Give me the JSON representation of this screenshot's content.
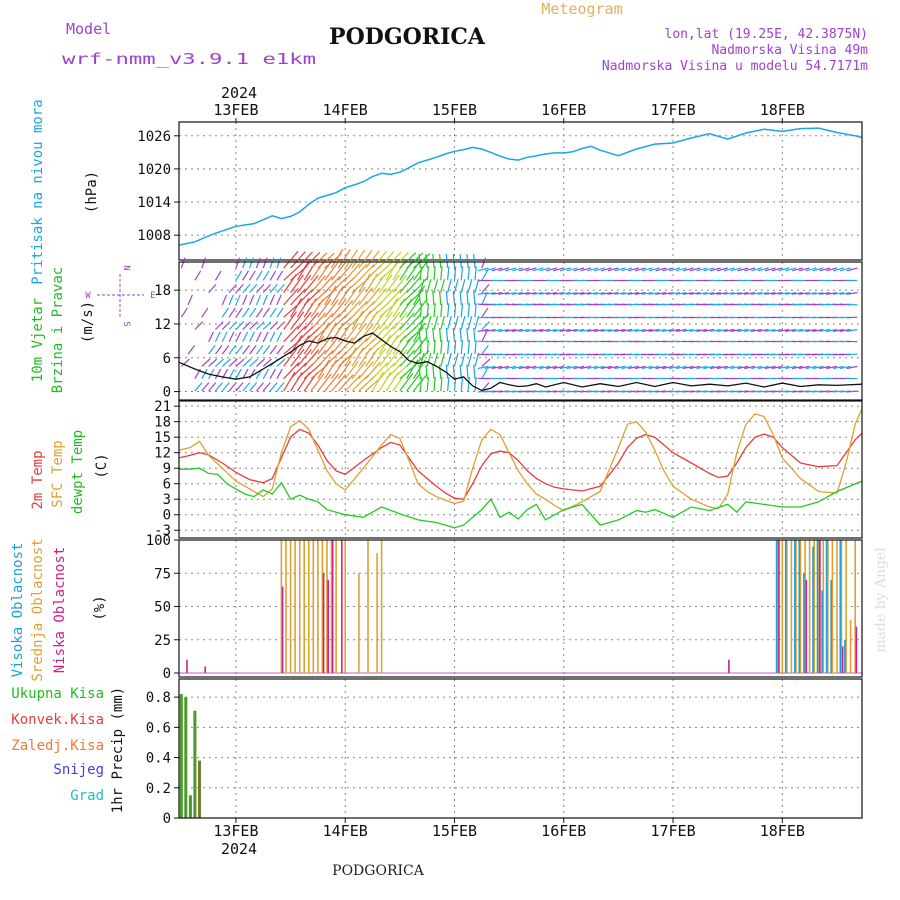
{
  "header": {
    "model_label": "Model",
    "model_name": "wrf-nmm_v3.9.1 e1km",
    "title": "PODGORICA",
    "subtitle": "Meteogram",
    "coords": "lon,lat (19.25E, 42.3875N)",
    "altitude": "Nadmorska Visina 49m",
    "model_altitude": "Nadmorska Visina u modelu 54.7171m",
    "footer_title": "PODGORICA",
    "credit": "made by Angel"
  },
  "colors": {
    "pressure": "#1aa6e6",
    "temp2m": "#e83c3c",
    "sfc": "#e0a030",
    "dewpt": "#22cc22",
    "high_cloud": "#1a9fe0",
    "mid_cloud": "#e0a030",
    "low_cloud": "#d0208a",
    "total_precip": "#22bb22",
    "conv_precip": "#e83c3c",
    "frozen": "#f07a30",
    "snow": "#4040e0",
    "hail": "#20c0c0",
    "title_purple": "#a040d0",
    "grid": "#888888"
  },
  "time_axis": {
    "year_label": "2024",
    "days": [
      "13FEB",
      "14FEB",
      "15FEB",
      "16FEB",
      "17FEB",
      "18FEB"
    ],
    "start_hour": -12.5,
    "end_hour": 137.5
  },
  "chart_data": [
    {
      "type": "line",
      "panel": "pressure",
      "ylabels": [
        "Pritisak na nivou mora",
        "(hPa)"
      ],
      "yticks": [
        1008,
        1014,
        1020,
        1026
      ],
      "ylim": [
        1003.5,
        1028.5
      ],
      "grid": true,
      "series": [
        {
          "x": [
            -12.5,
            -9,
            -5,
            0,
            4,
            8,
            10,
            12,
            14,
            16,
            18,
            20,
            22,
            24,
            26,
            28,
            30,
            32,
            34,
            36,
            38,
            40,
            42,
            44,
            46,
            48,
            50,
            52,
            54,
            56,
            58,
            60,
            62,
            64,
            66,
            68,
            70,
            72,
            74,
            76,
            78,
            80,
            84,
            88,
            92,
            96,
            100,
            104,
            108,
            112,
            116,
            120,
            124,
            128,
            132,
            136,
            137.5
          ],
          "values": [
            1006.2,
            1006.8,
            1008.2,
            1009.6,
            1010.1,
            1011.5,
            1011.0,
            1011.4,
            1012.2,
            1013.6,
            1014.7,
            1015.2,
            1015.7,
            1016.6,
            1017.1,
            1017.7,
            1018.6,
            1019.2,
            1019.0,
            1019.4,
            1020.2,
            1021.1,
            1021.6,
            1022.1,
            1022.7,
            1023.2,
            1023.5,
            1023.9,
            1023.6,
            1023.0,
            1022.3,
            1021.8,
            1021.6,
            1022.1,
            1022.4,
            1022.7,
            1022.9,
            1022.9,
            1023.1,
            1023.7,
            1024.1,
            1023.4,
            1022.4,
            1023.6,
            1024.5,
            1024.7,
            1025.6,
            1026.4,
            1025.4,
            1026.5,
            1027.2,
            1026.8,
            1027.3,
            1027.4,
            1026.6,
            1026.0,
            1025.7
          ]
        }
      ]
    },
    {
      "type": "line",
      "panel": "wind",
      "ylabels": [
        "10m Vjetar",
        "Brzina i Pravac",
        "(m/s)"
      ],
      "compass": [
        "N",
        "W",
        "E",
        "S"
      ],
      "yticks": [
        0,
        6,
        12,
        18
      ],
      "ylim": [
        -1.5,
        23
      ],
      "grid": true,
      "series": [
        {
          "name": "speed",
          "x": [
            -12.5,
            -9,
            -6,
            -3,
            0,
            3,
            6,
            9,
            12,
            14,
            16,
            18,
            20,
            22,
            24,
            26,
            28,
            30,
            32,
            34,
            36,
            38,
            40,
            42,
            44,
            46,
            48,
            50,
            52,
            54,
            56,
            58,
            60,
            62,
            64,
            66,
            68,
            72,
            76,
            80,
            84,
            88,
            92,
            96,
            100,
            104,
            108,
            112,
            116,
            120,
            124,
            128,
            132,
            137.5
          ],
          "values": [
            5.2,
            4.0,
            3.1,
            2.6,
            2.2,
            2.6,
            4.0,
            5.5,
            7.0,
            8.2,
            9.0,
            8.6,
            9.4,
            9.6,
            9.0,
            8.6,
            9.8,
            10.4,
            9.2,
            8.0,
            7.1,
            5.5,
            5.0,
            5.3,
            4.5,
            3.5,
            2.2,
            2.6,
            1.0,
            0.2,
            0.6,
            1.6,
            1.2,
            0.9,
            1.0,
            1.4,
            0.8,
            1.6,
            0.8,
            1.4,
            0.9,
            1.6,
            0.9,
            1.6,
            1.0,
            1.3,
            1.0,
            1.5,
            0.8,
            1.5,
            0.9,
            1.2,
            1.1,
            1.3
          ]
        }
      ]
    },
    {
      "type": "line",
      "panel": "temperature",
      "ylabels": [
        "2m Temp",
        "SFC Temp",
        "dewpt Temp",
        "(C)"
      ],
      "yticks": [
        -3,
        0,
        3,
        6,
        9,
        12,
        15,
        18,
        21
      ],
      "ylim": [
        -4.5,
        22
      ],
      "grid": true,
      "series": [
        {
          "name": "2m Temp",
          "x": [
            -12.5,
            -10,
            -8,
            -6,
            -3,
            0,
            3,
            6,
            8,
            10,
            12,
            14,
            16,
            18,
            20,
            22,
            24,
            28,
            32,
            34,
            36,
            38,
            40,
            42,
            44,
            46,
            48,
            50,
            52,
            54,
            56,
            58,
            60,
            62,
            64,
            66,
            68,
            70,
            72,
            76,
            80,
            84,
            86,
            88,
            90,
            92,
            94,
            96,
            100,
            104,
            106,
            108,
            110,
            112,
            114,
            116,
            118,
            120,
            124,
            128,
            132,
            134,
            136,
            137.5
          ],
          "values": [
            11.0,
            11.5,
            12.0,
            11.6,
            10.0,
            8.2,
            6.8,
            6.2,
            7.0,
            11.0,
            15.0,
            16.5,
            15.8,
            13.5,
            10.5,
            8.5,
            7.8,
            10.5,
            13.0,
            14.0,
            13.5,
            11.0,
            8.5,
            7.0,
            5.5,
            4.2,
            3.2,
            3.0,
            6.0,
            9.5,
            11.8,
            12.3,
            12.0,
            10.5,
            8.5,
            7.0,
            6.0,
            5.3,
            5.0,
            4.6,
            5.5,
            10.0,
            13.0,
            14.8,
            15.5,
            15.0,
            13.5,
            12.0,
            10.0,
            8.0,
            7.2,
            7.5,
            10.0,
            13.0,
            15.0,
            15.6,
            15.0,
            13.0,
            10.0,
            9.3,
            9.5,
            12.0,
            14.5,
            15.8
          ]
        },
        {
          "name": "SFC Temp",
          "x": [
            -12.5,
            -10,
            -8,
            -6,
            -3,
            0,
            3,
            6,
            8,
            10,
            12,
            14,
            16,
            18,
            20,
            22,
            24,
            28,
            32,
            34,
            36,
            38,
            40,
            42,
            44,
            46,
            48,
            50,
            52,
            54,
            56,
            58,
            60,
            62,
            64,
            66,
            68,
            70,
            72,
            76,
            80,
            84,
            86,
            88,
            90,
            92,
            94,
            96,
            100,
            104,
            106,
            108,
            110,
            112,
            114,
            116,
            118,
            120,
            124,
            128,
            132,
            134,
            136,
            137.5
          ],
          "values": [
            12.5,
            13.0,
            14.2,
            11.5,
            9.0,
            6.5,
            5.0,
            3.5,
            5.0,
            12.0,
            17.0,
            18.2,
            16.5,
            12.5,
            8.5,
            6.0,
            4.8,
            9.0,
            13.5,
            15.5,
            14.8,
            10.5,
            6.0,
            4.5,
            3.5,
            2.8,
            2.2,
            2.6,
            9.0,
            14.5,
            16.5,
            15.5,
            12.0,
            8.5,
            6.0,
            4.0,
            3.0,
            1.8,
            0.8,
            2.5,
            4.5,
            13.0,
            17.5,
            18.0,
            16.0,
            12.5,
            8.5,
            5.5,
            3.0,
            1.5,
            1.2,
            4.0,
            12.0,
            17.5,
            19.5,
            19.0,
            15.5,
            11.0,
            7.0,
            4.5,
            4.2,
            10.0,
            17.5,
            20.5
          ]
        },
        {
          "name": "dewpt Temp",
          "x": [
            -12.5,
            -10,
            -8,
            -6,
            -4,
            -2,
            0,
            2,
            4,
            6,
            8,
            10,
            12,
            14,
            16,
            18,
            20,
            22,
            24,
            28,
            32,
            36,
            40,
            44,
            48,
            50,
            52,
            54,
            56,
            58,
            60,
            62,
            64,
            66,
            68,
            72,
            76,
            80,
            84,
            88,
            90,
            92,
            96,
            100,
            104,
            108,
            110,
            112,
            116,
            120,
            124,
            128,
            132,
            137.5
          ],
          "values": [
            8.8,
            8.8,
            9.0,
            8.0,
            7.8,
            6.0,
            5.0,
            4.0,
            3.5,
            4.8,
            4.0,
            6.2,
            3.0,
            3.8,
            3.0,
            2.5,
            1.0,
            0.5,
            0.0,
            -0.5,
            1.5,
            0.2,
            -1.0,
            -1.5,
            -2.5,
            -2.0,
            -0.5,
            1.0,
            3.0,
            -0.5,
            0.5,
            -0.8,
            1.0,
            2.0,
            -1.0,
            1.0,
            2.0,
            -2.0,
            -1.0,
            0.8,
            0.5,
            1.0,
            -0.5,
            1.5,
            0.8,
            2.0,
            0.5,
            2.5,
            2.0,
            1.5,
            1.5,
            2.5,
            4.5,
            6.5
          ]
        }
      ]
    },
    {
      "type": "bar",
      "panel": "clouds",
      "ylabels": [
        "Visoka Oblacnost",
        "Srednja Oblacnost",
        "Niska Oblacnost",
        "(%)"
      ],
      "yticks": [
        0,
        25,
        50,
        75,
        100
      ],
      "ylim": [
        -3,
        100
      ],
      "grid": true,
      "series": [
        {
          "name": "Srednja Oblacnost",
          "x": [
            10,
            11,
            12,
            13,
            14,
            15,
            16,
            17,
            18,
            19,
            20,
            21,
            22,
            24,
            27,
            29,
            31,
            32,
            119,
            120,
            121,
            122,
            123,
            124,
            125,
            126,
            127,
            128,
            129,
            130,
            131,
            132,
            133,
            134,
            135,
            136
          ],
          "values": [
            100,
            100,
            100,
            100,
            100,
            100,
            100,
            100,
            100,
            100,
            100,
            100,
            100,
            100,
            75,
            100,
            90,
            100,
            100,
            100,
            100,
            100,
            100,
            100,
            100,
            100,
            100,
            100,
            100,
            100,
            100,
            100,
            100,
            100,
            40,
            100
          ]
        },
        {
          "name": "Visoka Oblacnost",
          "x": [
            119,
            121,
            123,
            124,
            125,
            127,
            128,
            129,
            130,
            131,
            133,
            134
          ],
          "values": [
            100,
            100,
            100,
            100,
            75,
            95,
            100,
            62,
            100,
            70,
            100,
            25
          ]
        },
        {
          "name": "Niska Oblacnost",
          "x": [
            -11,
            -7,
            10,
            19,
            20,
            21,
            23,
            108,
            119,
            125,
            128,
            133,
            136
          ],
          "values": [
            10,
            5,
            65,
            75,
            70,
            100,
            100,
            10,
            100,
            70,
            100,
            20,
            35
          ]
        }
      ]
    },
    {
      "type": "bar",
      "panel": "precipitation",
      "ylabels": [
        "1hr Precip (mm)"
      ],
      "legend": [
        "Ukupna Kisa",
        "Konvek.Kisa",
        "Zaledj.Kisa",
        "Snijeg",
        "Grad"
      ],
      "yticks": [
        0,
        0.2,
        0.4,
        0.6,
        0.8
      ],
      "ylim": [
        0,
        0.92
      ],
      "grid": true,
      "series": [
        {
          "name": "Ukupna Kisa",
          "x": [
            -12,
            -11,
            -10,
            -9,
            -8
          ],
          "values": [
            0.82,
            0.8,
            0.15,
            0.71,
            0.38
          ]
        },
        {
          "name": "Konvek.Kisa",
          "x": [
            -8
          ],
          "values": [
            0.37
          ]
        }
      ]
    }
  ]
}
